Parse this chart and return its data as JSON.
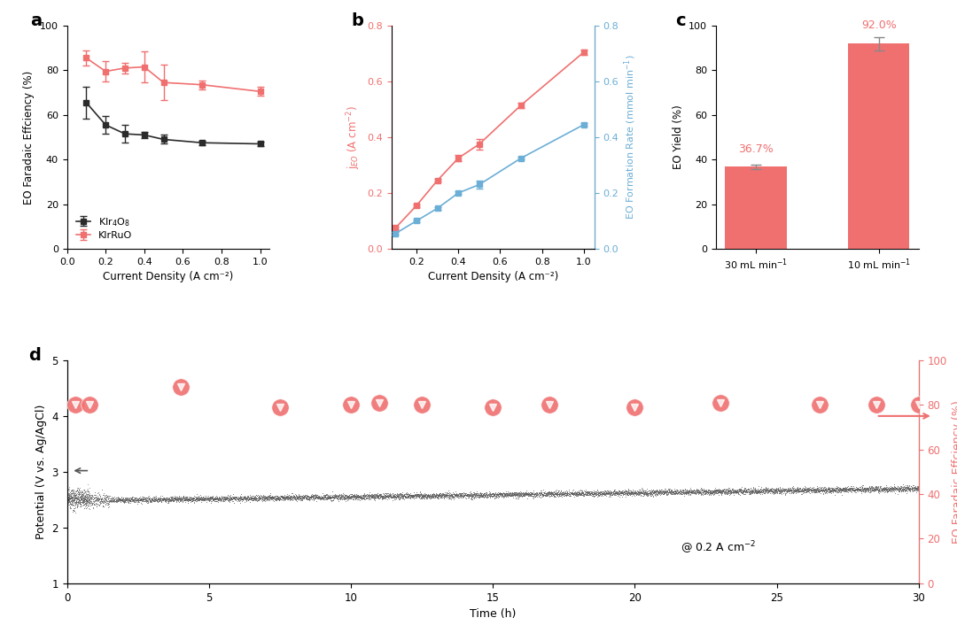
{
  "panel_a": {
    "black_x": [
      0.1,
      0.2,
      0.3,
      0.4,
      0.5,
      0.7,
      1.0
    ],
    "black_y": [
      65.5,
      55.5,
      51.5,
      51.0,
      49.0,
      47.5,
      47.0
    ],
    "black_yerr": [
      7.0,
      4.0,
      4.0,
      1.5,
      2.0,
      1.0,
      1.0
    ],
    "red_x": [
      0.1,
      0.2,
      0.3,
      0.4,
      0.5,
      0.7,
      1.0
    ],
    "red_y": [
      85.5,
      79.5,
      81.0,
      81.5,
      74.5,
      73.5,
      70.5
    ],
    "red_yerr": [
      3.5,
      4.5,
      2.5,
      7.0,
      8.0,
      2.0,
      2.0
    ],
    "xlabel": "Current Density (A cm⁻²)",
    "ylabel": "EO Faradaic Effciency (%)",
    "xlim": [
      0.0,
      1.05
    ],
    "ylim": [
      0,
      100
    ],
    "xticks": [
      0.0,
      0.2,
      0.4,
      0.6,
      0.8,
      1.0
    ],
    "yticks": [
      0,
      20,
      40,
      60,
      80,
      100
    ],
    "legend_black": "KIr$_4$O$_8$",
    "legend_red": "KIrRuO",
    "label": "a"
  },
  "panel_b": {
    "red_x": [
      0.1,
      0.2,
      0.3,
      0.4,
      0.5,
      0.7,
      1.0
    ],
    "red_y": [
      0.075,
      0.155,
      0.245,
      0.325,
      0.375,
      0.515,
      0.705
    ],
    "red_yerr": [
      0.005,
      0.005,
      0.005,
      0.01,
      0.02,
      0.01,
      0.01
    ],
    "blue_x": [
      0.1,
      0.2,
      0.3,
      0.4,
      0.5,
      0.7,
      1.0
    ],
    "blue_y": [
      0.055,
      0.1,
      0.145,
      0.2,
      0.23,
      0.325,
      0.445
    ],
    "blue_yerr": [
      0.005,
      0.005,
      0.005,
      0.005,
      0.015,
      0.005,
      0.005
    ],
    "xlabel": "Current Density (A cm⁻²)",
    "ylabel_left": "j$_{EO}$ (A cm$^{-2}$)",
    "ylabel_right": "EO Formation Rate (mmol min$^{-1}$)",
    "xlim": [
      0.08,
      1.05
    ],
    "ylim_left": [
      0.0,
      0.8
    ],
    "ylim_right": [
      0.0,
      0.8
    ],
    "xticks": [
      0.2,
      0.4,
      0.6,
      0.8,
      1.0
    ],
    "yticks": [
      0.0,
      0.2,
      0.4,
      0.6,
      0.8
    ],
    "label": "b"
  },
  "panel_c": {
    "categories": [
      "30 mL min$^{-1}$",
      "10 mL min$^{-1}$"
    ],
    "values": [
      36.7,
      92.0
    ],
    "yerr": [
      1.0,
      3.0
    ],
    "labels": [
      "36.7%",
      "92.0%"
    ],
    "ylabel": "EO Yield (%)",
    "ylim": [
      0,
      100
    ],
    "yticks": [
      0,
      20,
      40,
      60,
      80,
      100
    ],
    "bar_color": "#F07070",
    "label": "c"
  },
  "panel_d": {
    "xlabel": "Time (h)",
    "ylabel_left": "Potential (V vs. Ag/AgCl)",
    "ylabel_right": "EO Faradaic Effciency (%)",
    "xlim": [
      0,
      30
    ],
    "ylim_left": [
      1.0,
      5.0
    ],
    "ylim_right": [
      0,
      100
    ],
    "xticks": [
      0,
      5,
      10,
      15,
      20,
      25,
      30
    ],
    "yticks_left": [
      1,
      2,
      3,
      4,
      5
    ],
    "yticks_right": [
      0,
      20,
      40,
      60,
      80,
      100
    ],
    "annotation": "@ 0.2 A cm$^{-2}$",
    "label": "d",
    "scatter_color": "#555555",
    "dot_color": "#F07070",
    "dot_x": [
      0.3,
      0.8,
      4.0,
      7.5,
      10.0,
      11.0,
      12.5,
      15.0,
      17.0,
      20.0,
      23.0,
      26.5,
      28.5,
      30.0
    ],
    "dot_y": [
      80,
      80,
      88,
      79,
      80,
      81,
      80,
      79,
      80,
      79,
      81,
      80,
      80,
      80
    ]
  },
  "colors": {
    "black_line": "#2b2b2b",
    "red_line": "#F07070",
    "blue_line": "#6BAED6",
    "bar_color": "#F07070",
    "dot_color": "#F07070",
    "scatter_dot": "#444444"
  }
}
